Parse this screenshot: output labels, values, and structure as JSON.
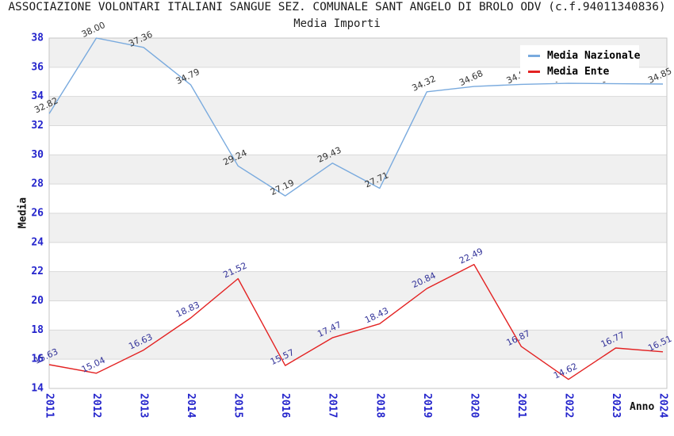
{
  "header": {
    "title": "ASSOCIAZIONE VOLONTARI ITALIANI SANGUE SEZ. COMUNALE SANT ANGELO DI BROLO ODV (c.f.94011340836)",
    "subtitle": "Media Importi"
  },
  "chart_data": {
    "type": "line",
    "title": "Media Importi",
    "xlabel": "Anno",
    "ylabel": "Media",
    "x": [
      "2011",
      "2012",
      "2013",
      "2014",
      "2015",
      "2016",
      "2017",
      "2018",
      "2019",
      "2020",
      "2021",
      "2022",
      "2023",
      "2024"
    ],
    "ylim": [
      14,
      38
    ],
    "ytick_step": 2,
    "y_ticks": [
      "38",
      "36",
      "34",
      "32",
      "30",
      "28",
      "26",
      "24",
      "22",
      "20",
      "18",
      "16",
      "14"
    ],
    "grid": "horizontal gridlines with alternating gray bands",
    "legend_position": "top-right inside plot",
    "series": [
      {
        "name": "Media Nazionale",
        "color": "#79aade",
        "label_color": "#333333",
        "values": [
          32.82,
          38.0,
          37.36,
          34.79,
          29.24,
          27.19,
          29.43,
          27.71,
          34.32,
          34.68,
          34.83,
          34.9,
          34.87,
          34.85
        ],
        "hidden_label_indices": [
          11,
          12
        ]
      },
      {
        "name": "Media Ente",
        "color": "#e32222",
        "label_color": "#333399",
        "values": [
          15.63,
          15.04,
          16.63,
          18.83,
          21.52,
          15.57,
          17.47,
          18.43,
          20.84,
          22.49,
          16.87,
          14.62,
          16.77,
          16.51
        ],
        "hidden_label_indices": []
      }
    ]
  },
  "style": {
    "tick_color": "#2424cc",
    "band_color": "#f0f0f0",
    "grid_color": "#d9d9d9",
    "border_color": "#c6c6c6",
    "background": "#ffffff"
  }
}
